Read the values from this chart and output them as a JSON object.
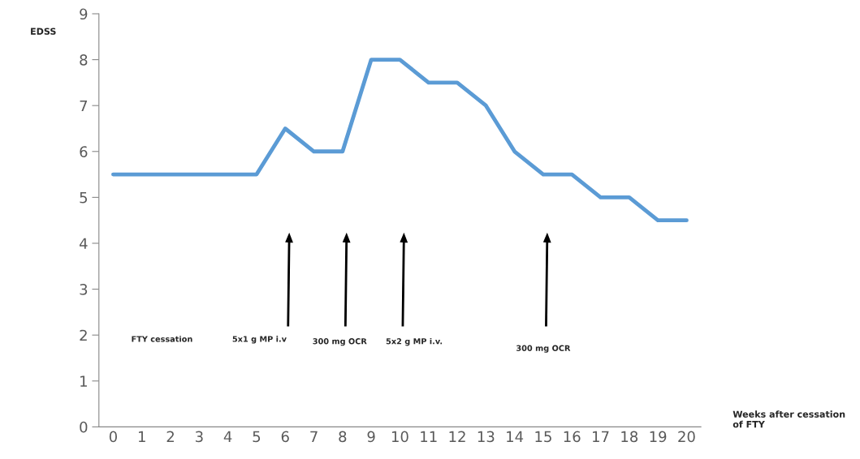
{
  "chart_data": {
    "type": "line",
    "xlabel": "Weeks after cessation\nof FTY",
    "ylabel": "EDSS",
    "categories": [
      "0",
      "1",
      "2",
      "3",
      "4",
      "5",
      "6",
      "7",
      "8",
      "9",
      "10",
      "11",
      "12",
      "13",
      "14",
      "15",
      "16",
      "17",
      "18",
      "19",
      "20"
    ],
    "series": [
      {
        "color": "#5b9bd5",
        "values": [
          5.5,
          5.5,
          5.5,
          5.5,
          5.5,
          5.5,
          6.5,
          6,
          6,
          8,
          8,
          7.5,
          7.5,
          7,
          6,
          5.5,
          5.5,
          5,
          5,
          4.5,
          4.5
        ]
      }
    ],
    "ylim": [
      0,
      9
    ],
    "yticks": [
      0,
      1,
      2,
      3,
      4,
      5,
      6,
      7,
      8,
      9
    ],
    "grid": false,
    "legend": false,
    "marker": "none",
    "line_style": "solid",
    "annotations": [
      "FTY cessation",
      "5x1 g MP i.v",
      "300 mg OCR",
      "5x2 g MP i.v.",
      "300 mg OCR"
    ]
  }
}
